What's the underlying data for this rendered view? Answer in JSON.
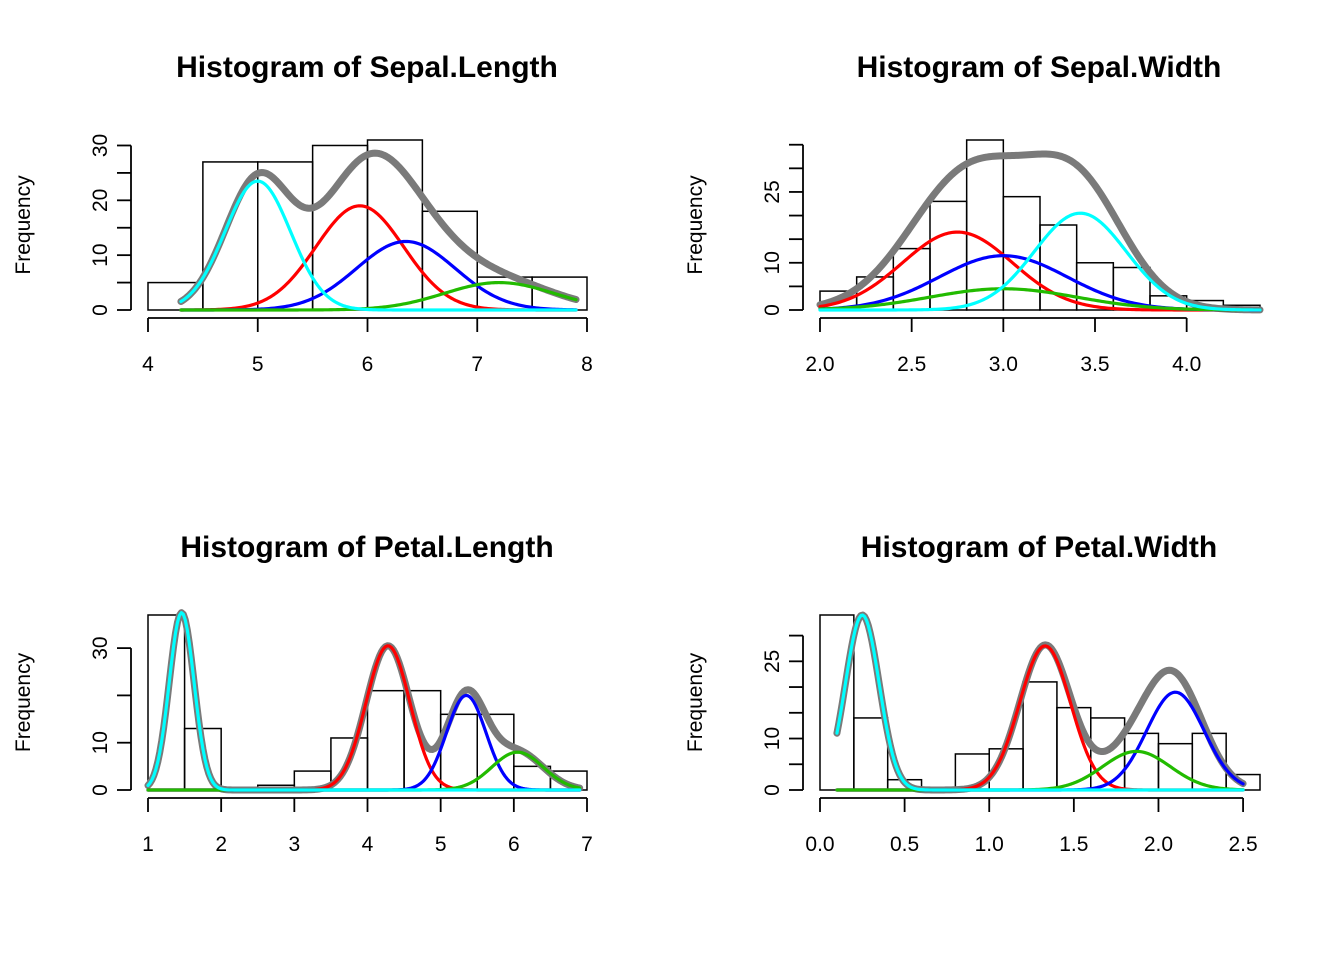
{
  "chart_data": [
    {
      "type": "histogram",
      "title": "Histogram of Sepal.Length",
      "xlabel": "",
      "ylabel": "Frequency",
      "xlim": [
        4,
        8
      ],
      "ylim": [
        0,
        31
      ],
      "x_ticks": [
        4,
        5,
        6,
        7,
        8
      ],
      "x_tick_labels": [
        "4",
        "5",
        "6",
        "7",
        "8"
      ],
      "y_ticks": [
        0,
        5,
        10,
        15,
        20,
        25,
        30
      ],
      "y_tick_labels": [
        "0",
        "",
        "10",
        "",
        "20",
        "",
        "30"
      ],
      "bins": [
        {
          "x0": 4.0,
          "x1": 4.5,
          "count": 5
        },
        {
          "x0": 4.5,
          "x1": 5.0,
          "count": 27
        },
        {
          "x0": 5.0,
          "x1": 5.5,
          "count": 27
        },
        {
          "x0": 5.5,
          "x1": 6.0,
          "count": 30
        },
        {
          "x0": 6.0,
          "x1": 6.5,
          "count": 31
        },
        {
          "x0": 6.5,
          "x1": 7.0,
          "count": 18
        },
        {
          "x0": 7.0,
          "x1": 7.5,
          "count": 6
        },
        {
          "x0": 7.5,
          "x1": 8.0,
          "count": 6
        }
      ],
      "curve_range": [
        4.3,
        7.9
      ],
      "components": [
        {
          "color": "#ff0000",
          "weight": 19.0,
          "mean": 5.93,
          "sd": 0.4
        },
        {
          "color": "#0000ff",
          "weight": 12.5,
          "mean": 6.35,
          "sd": 0.45
        },
        {
          "color": "#22bb00",
          "weight": 5.0,
          "mean": 7.2,
          "sd": 0.5
        },
        {
          "color": "#00ffff",
          "weight": 23.5,
          "mean": 5.0,
          "sd": 0.3
        }
      ],
      "total_color": "#7a7a7a"
    },
    {
      "type": "histogram",
      "title": "Histogram of Sepal.Width",
      "xlabel": "",
      "ylabel": "Frequency",
      "xlim": [
        2.0,
        4.4
      ],
      "ylim": [
        0,
        36
      ],
      "x_ticks": [
        2.0,
        2.5,
        3.0,
        3.5,
        4.0
      ],
      "x_tick_labels": [
        "2.0",
        "2.5",
        "3.0",
        "3.5",
        "4.0"
      ],
      "y_ticks": [
        0,
        5,
        10,
        15,
        20,
        25,
        30,
        35
      ],
      "y_tick_labels": [
        "0",
        "",
        "10",
        "",
        "",
        "25",
        "",
        ""
      ],
      "bins": [
        {
          "x0": 2.0,
          "x1": 2.2,
          "count": 4
        },
        {
          "x0": 2.2,
          "x1": 2.4,
          "count": 7
        },
        {
          "x0": 2.4,
          "x1": 2.6,
          "count": 13
        },
        {
          "x0": 2.6,
          "x1": 2.8,
          "count": 23
        },
        {
          "x0": 2.8,
          "x1": 3.0,
          "count": 36
        },
        {
          "x0": 3.0,
          "x1": 3.2,
          "count": 24
        },
        {
          "x0": 3.2,
          "x1": 3.4,
          "count": 18
        },
        {
          "x0": 3.4,
          "x1": 3.6,
          "count": 10
        },
        {
          "x0": 3.6,
          "x1": 3.8,
          "count": 9
        },
        {
          "x0": 3.8,
          "x1": 4.0,
          "count": 3
        },
        {
          "x0": 4.0,
          "x1": 4.2,
          "count": 2
        },
        {
          "x0": 4.2,
          "x1": 4.4,
          "count": 1
        }
      ],
      "curve_range": [
        2.0,
        4.4
      ],
      "components": [
        {
          "color": "#ff0000",
          "weight": 16.5,
          "mean": 2.75,
          "sd": 0.3
        },
        {
          "color": "#0000ff",
          "weight": 11.5,
          "mean": 3.0,
          "sd": 0.35
        },
        {
          "color": "#22bb00",
          "weight": 4.5,
          "mean": 3.0,
          "sd": 0.4
        },
        {
          "color": "#00ffff",
          "weight": 20.5,
          "mean": 3.42,
          "sd": 0.25
        }
      ],
      "total_color": "#7a7a7a"
    },
    {
      "type": "histogram",
      "title": "Histogram of Petal.Length",
      "xlabel": "",
      "ylabel": "Frequency",
      "xlim": [
        1,
        7
      ],
      "ylim": [
        0,
        37
      ],
      "x_ticks": [
        1,
        2,
        3,
        4,
        5,
        6,
        7
      ],
      "x_tick_labels": [
        "1",
        "2",
        "3",
        "4",
        "5",
        "6",
        "7"
      ],
      "y_ticks": [
        0,
        10,
        20,
        30
      ],
      "y_tick_labels": [
        "0",
        "10",
        "",
        "30"
      ],
      "bins": [
        {
          "x0": 1.0,
          "x1": 1.5,
          "count": 37
        },
        {
          "x0": 1.5,
          "x1": 2.0,
          "count": 13
        },
        {
          "x0": 2.0,
          "x1": 2.5,
          "count": 0
        },
        {
          "x0": 2.5,
          "x1": 3.0,
          "count": 1
        },
        {
          "x0": 3.0,
          "x1": 3.5,
          "count": 4
        },
        {
          "x0": 3.5,
          "x1": 4.0,
          "count": 11
        },
        {
          "x0": 4.0,
          "x1": 4.5,
          "count": 21
        },
        {
          "x0": 4.5,
          "x1": 5.0,
          "count": 21
        },
        {
          "x0": 5.0,
          "x1": 5.5,
          "count": 16
        },
        {
          "x0": 5.5,
          "x1": 6.0,
          "count": 16
        },
        {
          "x0": 6.0,
          "x1": 6.5,
          "count": 5
        },
        {
          "x0": 6.5,
          "x1": 7.0,
          "count": 4
        }
      ],
      "curve_range": [
        1.0,
        6.9
      ],
      "components": [
        {
          "color": "#ff0000",
          "weight": 30.5,
          "mean": 4.28,
          "sd": 0.3
        },
        {
          "color": "#0000ff",
          "weight": 20.0,
          "mean": 5.35,
          "sd": 0.27
        },
        {
          "color": "#22bb00",
          "weight": 8.0,
          "mean": 6.05,
          "sd": 0.35
        },
        {
          "color": "#00ffff",
          "weight": 37.5,
          "mean": 1.46,
          "sd": 0.17
        }
      ],
      "total_color": "#7a7a7a"
    },
    {
      "type": "histogram",
      "title": "Histogram of Petal.Width",
      "xlabel": "",
      "ylabel": "Frequency",
      "xlim": [
        0.0,
        2.6
      ],
      "ylim": [
        0,
        34
      ],
      "x_ticks": [
        0.0,
        0.5,
        1.0,
        1.5,
        2.0,
        2.5
      ],
      "x_tick_labels": [
        "0.0",
        "0.5",
        "1.0",
        "1.5",
        "2.0",
        "2.5"
      ],
      "y_ticks": [
        0,
        5,
        10,
        15,
        20,
        25,
        30,
        35
      ],
      "y_tick_labels": [
        "0",
        "",
        "10",
        "",
        "",
        "25",
        "",
        ""
      ],
      "bins": [
        {
          "x0": 0.0,
          "x1": 0.2,
          "count": 34
        },
        {
          "x0": 0.2,
          "x1": 0.4,
          "count": 14
        },
        {
          "x0": 0.4,
          "x1": 0.6,
          "count": 2
        },
        {
          "x0": 0.6,
          "x1": 0.8,
          "count": 0
        },
        {
          "x0": 0.8,
          "x1": 1.0,
          "count": 7
        },
        {
          "x0": 1.0,
          "x1": 1.2,
          "count": 8
        },
        {
          "x0": 1.2,
          "x1": 1.4,
          "count": 21
        },
        {
          "x0": 1.4,
          "x1": 1.6,
          "count": 16
        },
        {
          "x0": 1.6,
          "x1": 1.8,
          "count": 14
        },
        {
          "x0": 1.8,
          "x1": 2.0,
          "count": 11
        },
        {
          "x0": 2.0,
          "x1": 2.2,
          "count": 9
        },
        {
          "x0": 2.2,
          "x1": 2.4,
          "count": 11
        },
        {
          "x0": 2.4,
          "x1": 2.6,
          "count": 3
        }
      ],
      "curve_range": [
        0.1,
        2.5
      ],
      "components": [
        {
          "color": "#ff0000",
          "weight": 28.0,
          "mean": 1.33,
          "sd": 0.15
        },
        {
          "color": "#0000ff",
          "weight": 19.0,
          "mean": 2.1,
          "sd": 0.17
        },
        {
          "color": "#22bb00",
          "weight": 7.5,
          "mean": 1.87,
          "sd": 0.2
        },
        {
          "color": "#00ffff",
          "weight": 34.0,
          "mean": 0.25,
          "sd": 0.1
        }
      ],
      "total_color": "#7a7a7a"
    }
  ]
}
